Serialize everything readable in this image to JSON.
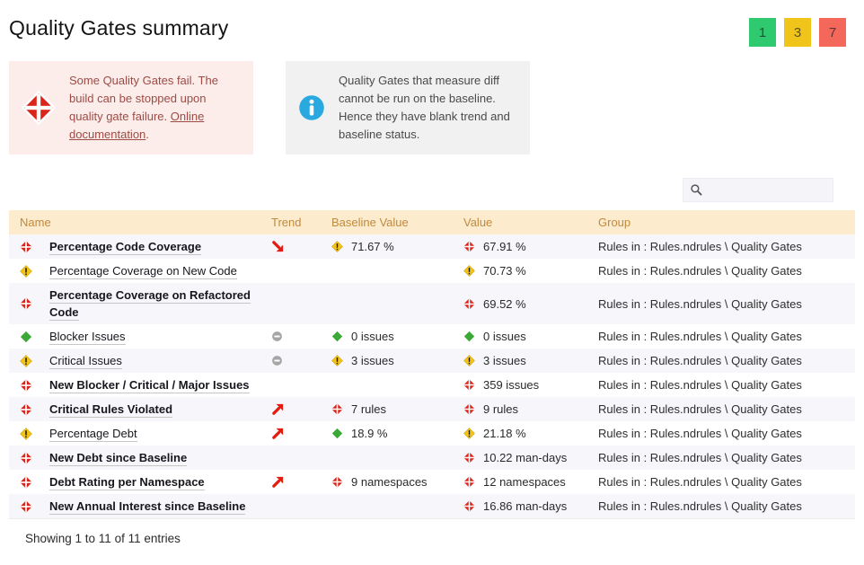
{
  "page": {
    "title": "Quality Gates summary",
    "footer": "Showing 1 to 11 of 11 entries"
  },
  "badges": [
    {
      "label": "1",
      "color": "#2fca6f",
      "meaning": "pass-count"
    },
    {
      "label": "3",
      "color": "#f0c41b",
      "meaning": "warn-count"
    },
    {
      "label": "7",
      "color": "#f4685c",
      "meaning": "fail-count"
    }
  ],
  "alerts": {
    "fail": {
      "text_before_link": "Some Quality Gates fail. The build can be stopped upon quality gate failure. ",
      "link": "Online documentation",
      "text_after_link": "."
    },
    "info": {
      "text": "Quality Gates that measure diff cannot be run on the baseline. Hence they have blank trend and baseline status."
    }
  },
  "search": {
    "placeholder": "",
    "value": ""
  },
  "colors": {
    "fail": "#da251b",
    "warn": "#f3c31a",
    "warn_stroke": "#d1a40d",
    "pass": "#3aa935",
    "trend_arrow": "#e41b0e",
    "trend_equal": "#a5a5a5",
    "info_blue": "#2aa9e0",
    "header_bg": "#fdebcd",
    "header_text": "#c18a3d",
    "row_stripe": "#f7f6fb"
  },
  "table": {
    "columns": [
      "Name",
      "Trend",
      "Baseline Value",
      "Value",
      "Group"
    ],
    "rows": [
      {
        "status": "fail",
        "name": "Percentage Code Coverage",
        "bold": true,
        "trend": "down",
        "baseline": {
          "status": "warn",
          "text": "71.67 %"
        },
        "value": {
          "status": "fail",
          "text": "67.91 %"
        },
        "group": "Rules in : Rules.ndrules \\ Quality Gates"
      },
      {
        "status": "warn",
        "name": "Percentage Coverage on New Code",
        "bold": false,
        "trend": null,
        "baseline": null,
        "value": {
          "status": "warn",
          "text": "70.73 %"
        },
        "group": "Rules in : Rules.ndrules \\ Quality Gates"
      },
      {
        "status": "fail",
        "name": "Percentage Coverage on Refactored Code",
        "bold": true,
        "trend": null,
        "baseline": null,
        "value": {
          "status": "fail",
          "text": "69.52 %"
        },
        "group": "Rules in : Rules.ndrules \\ Quality Gates"
      },
      {
        "status": "pass",
        "name": "Blocker Issues",
        "bold": false,
        "trend": "equal",
        "baseline": {
          "status": "pass",
          "text": "0 issues"
        },
        "value": {
          "status": "pass",
          "text": "0 issues"
        },
        "group": "Rules in : Rules.ndrules \\ Quality Gates"
      },
      {
        "status": "warn",
        "name": "Critical Issues",
        "bold": false,
        "trend": "equal",
        "baseline": {
          "status": "warn",
          "text": "3 issues"
        },
        "value": {
          "status": "warn",
          "text": "3 issues"
        },
        "group": "Rules in : Rules.ndrules \\ Quality Gates"
      },
      {
        "status": "fail",
        "name": "New Blocker / Critical / Major Issues",
        "bold": true,
        "trend": null,
        "baseline": null,
        "value": {
          "status": "fail",
          "text": "359 issues"
        },
        "group": "Rules in : Rules.ndrules \\ Quality Gates"
      },
      {
        "status": "fail",
        "name": "Critical Rules Violated",
        "bold": true,
        "trend": "up",
        "baseline": {
          "status": "fail",
          "text": "7 rules"
        },
        "value": {
          "status": "fail",
          "text": "9 rules"
        },
        "group": "Rules in : Rules.ndrules \\ Quality Gates"
      },
      {
        "status": "warn",
        "name": "Percentage Debt",
        "bold": false,
        "trend": "up",
        "baseline": {
          "status": "pass",
          "text": "18.9 %"
        },
        "value": {
          "status": "warn",
          "text": "21.18 %"
        },
        "group": "Rules in : Rules.ndrules \\ Quality Gates"
      },
      {
        "status": "fail",
        "name": "New Debt since Baseline",
        "bold": true,
        "trend": null,
        "baseline": null,
        "value": {
          "status": "fail",
          "text": "10.22 man-days"
        },
        "group": "Rules in : Rules.ndrules \\ Quality Gates"
      },
      {
        "status": "fail",
        "name": "Debt Rating per Namespace",
        "bold": true,
        "trend": "up",
        "baseline": {
          "status": "fail",
          "text": "9 namespaces"
        },
        "value": {
          "status": "fail",
          "text": "12 namespaces"
        },
        "group": "Rules in : Rules.ndrules \\ Quality Gates"
      },
      {
        "status": "fail",
        "name": "New Annual Interest since Baseline",
        "bold": true,
        "trend": null,
        "baseline": null,
        "value": {
          "status": "fail",
          "text": "16.86 man-days"
        },
        "group": "Rules in : Rules.ndrules \\ Quality Gates"
      }
    ]
  }
}
